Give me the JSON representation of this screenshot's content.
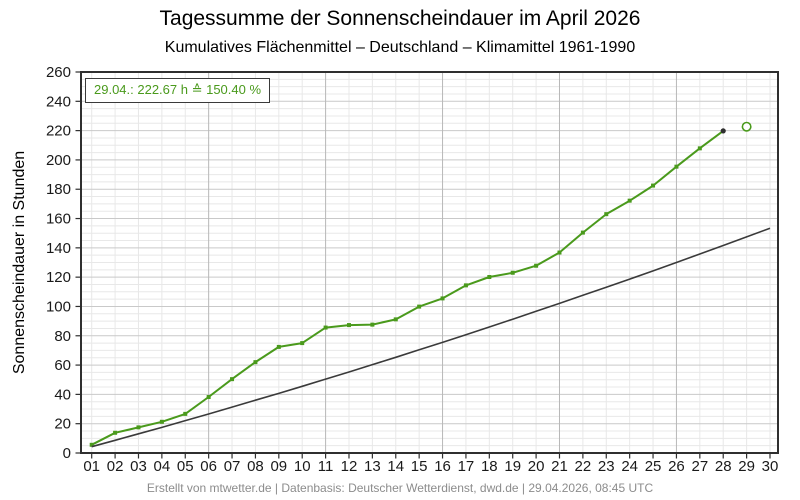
{
  "header": {
    "title": "Tagessumme der Sonnenscheindauer im April 2026",
    "subtitle": "Kumulatives Flächenmittel – Deutschland – Klimamittel 1961-1990"
  },
  "annotation": {
    "text": "29.04.: 222.67 h ≙ 150.40 %",
    "date": "29.04.",
    "hours": "222.67 h",
    "percent": "150.40 %"
  },
  "footer": {
    "credit": "Erstellt von mtwetter.de | Datenbasis: Deutscher Wetterdienst, dwd.de | 29.04.2026, 08:45 UTC"
  },
  "colors": {
    "series_green": "#4a9a1c",
    "climate_line": "#3a3a3a",
    "current_marker": "#2f2f2f",
    "grid_minor": "#e8e8e8",
    "grid_major_h": "#c9c9c9",
    "grid_major_v": "#b8b8b8",
    "border": "#2f2f2f",
    "tick_text": "#1a1a1a",
    "footer_text": "#8c8c8c"
  },
  "chart_data": {
    "type": "line",
    "title": "Tagessumme der Sonnenscheindauer im April 2026",
    "subtitle": "Kumulatives Flächenmittel – Deutschland – Klimamittel 1961-1990",
    "xlabel": "",
    "ylabel": "Sonnenscheindauer in Stunden",
    "ylim": [
      0,
      260
    ],
    "yticks": [
      0,
      20,
      40,
      60,
      80,
      100,
      120,
      140,
      160,
      180,
      200,
      220,
      240,
      260
    ],
    "y_minor_step": 5,
    "x_tick_labels": [
      "01",
      "02",
      "03",
      "04",
      "05",
      "06",
      "07",
      "08",
      "09",
      "10",
      "11",
      "12",
      "13",
      "14",
      "15",
      "16",
      "17",
      "18",
      "19",
      "20",
      "21",
      "22",
      "23",
      "24",
      "25",
      "26",
      "27",
      "28",
      "29",
      "30"
    ],
    "x_major_days": [
      6,
      11,
      16,
      21,
      26
    ],
    "grid": true,
    "legend": "none",
    "series": [
      {
        "id": "sunshine-cumulative-2026",
        "color": "#4a9a1c",
        "marker": "square",
        "x": [
          1,
          2,
          3,
          4,
          5,
          6,
          7,
          8,
          9,
          10,
          11,
          12,
          13,
          14,
          15,
          16,
          17,
          18,
          19,
          20,
          21,
          22,
          23,
          24,
          25,
          26,
          27,
          28
        ],
        "values": [
          5.6,
          13.8,
          17.5,
          21.3,
          26.7,
          38.2,
          50.4,
          62.0,
          72.4,
          75.0,
          85.6,
          87.3,
          87.6,
          91.2,
          99.9,
          105.5,
          114.4,
          120.1,
          123.0,
          127.8,
          136.8,
          150.4,
          163.0,
          172.2,
          182.5,
          195.4,
          207.9,
          219.8
        ]
      },
      {
        "id": "climate-mean-1961-1990",
        "color": "#3a3a3a",
        "marker": "none",
        "x": [
          1,
          2,
          3,
          4,
          5,
          6,
          7,
          8,
          9,
          10,
          11,
          12,
          13,
          14,
          15,
          16,
          17,
          18,
          19,
          20,
          21,
          22,
          23,
          24,
          25,
          26,
          27,
          28,
          29,
          30
        ],
        "values": [
          4.3,
          8.7,
          13.1,
          17.5,
          22.1,
          26.6,
          31.3,
          36.0,
          40.7,
          45.5,
          50.4,
          55.3,
          60.3,
          65.3,
          70.4,
          75.5,
          80.7,
          86.0,
          91.3,
          96.7,
          102.1,
          107.6,
          113.1,
          118.7,
          124.3,
          130.0,
          135.8,
          141.6,
          147.5,
          153.4
        ]
      }
    ],
    "current_point": {
      "x": 28,
      "value": 219.8
    },
    "preview_point": {
      "x": 29,
      "value": 222.67,
      "style": "open-circle"
    }
  }
}
